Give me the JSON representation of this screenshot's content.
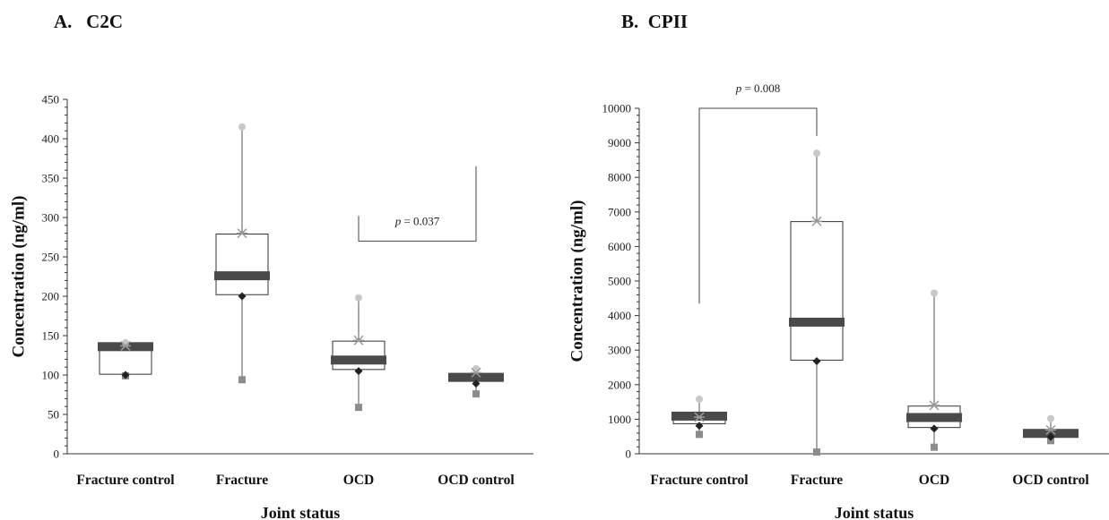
{
  "charts": [
    {
      "title": "A.   C2C",
      "type": "boxplot",
      "ylabel": "Concentration (ng/ml)",
      "xlabel": "Joint status",
      "ylim": [
        0,
        450
      ],
      "yticks": [
        "0",
        "50",
        "100",
        "150",
        "200",
        "250",
        "300",
        "350",
        "400",
        "450"
      ],
      "categories": [
        "Fracture control",
        "Fracture",
        "OCD",
        "OCD control"
      ],
      "boxes": [
        {
          "q1": 101,
          "q3": 140,
          "median": 136,
          "mean": 137,
          "max": 141,
          "min": 99,
          "diamond": 100
        },
        {
          "q1": 202,
          "q3": 279,
          "median": 226,
          "mean": 280,
          "max": 415,
          "min": 94,
          "diamond": 200
        },
        {
          "q1": 107,
          "q3": 143,
          "median": 119,
          "mean": 144,
          "max": 198,
          "min": 59,
          "diamond": 105
        },
        {
          "q1": 92,
          "q3": 102,
          "median": 97,
          "mean": 103,
          "max": 108,
          "min": 76,
          "diamond": 89
        }
      ],
      "annotation": {
        "from": 2,
        "to": 3,
        "italic": "p",
        "text": " = 0.037"
      }
    },
    {
      "title": "B.  CPII",
      "type": "boxplot",
      "ylabel": "Concentration (ng/ml)",
      "xlabel": "Joint status",
      "ylim": [
        0,
        10000
      ],
      "yticks": [
        "0",
        "1000",
        "2000",
        "3000",
        "4000",
        "5000",
        "6000",
        "7000",
        "8000",
        "9000",
        "10000"
      ],
      "categories": [
        "Fracture control",
        "Fracture",
        "OCD",
        "OCD control"
      ],
      "boxes": [
        {
          "q1": 870,
          "q3": 1200,
          "median": 1090,
          "mean": 1060,
          "max": 1580,
          "min": 560,
          "diamond": 810
        },
        {
          "q1": 2710,
          "q3": 6720,
          "median": 3810,
          "mean": 6730,
          "max": 8700,
          "min": 50,
          "diamond": 2680
        },
        {
          "q1": 760,
          "q3": 1380,
          "median": 1050,
          "mean": 1400,
          "max": 4650,
          "min": 190,
          "diamond": 730
        },
        {
          "q1": 490,
          "q3": 700,
          "median": 590,
          "mean": 690,
          "max": 1020,
          "min": 380,
          "diamond": 490
        }
      ],
      "annotation": {
        "from": 0,
        "to": 1,
        "italic": "p",
        "text": " = 0.008"
      }
    }
  ],
  "chart_data": [
    {
      "type": "boxplot",
      "title": "A.   C2C",
      "xlabel": "Joint status",
      "ylabel": "Concentration (ng/ml)",
      "ylim": [
        0,
        450
      ],
      "categories": [
        "Fracture control",
        "Fracture",
        "OCD",
        "OCD control"
      ],
      "series": [
        {
          "name": "Q1",
          "values": [
            101,
            202,
            107,
            92
          ]
        },
        {
          "name": "Median",
          "values": [
            136,
            226,
            119,
            97
          ]
        },
        {
          "name": "Q3",
          "values": [
            140,
            279,
            143,
            102
          ]
        },
        {
          "name": "Max",
          "values": [
            141,
            415,
            198,
            108
          ]
        },
        {
          "name": "Min",
          "values": [
            99,
            94,
            59,
            76
          ]
        },
        {
          "name": "Mean",
          "values": [
            137,
            280,
            144,
            103
          ]
        }
      ],
      "annotations": [
        "p = 0.037"
      ]
    },
    {
      "type": "boxplot",
      "title": "B.  CPII",
      "xlabel": "Joint status",
      "ylabel": "Concentration (ng/ml)",
      "ylim": [
        0,
        10000
      ],
      "categories": [
        "Fracture control",
        "Fracture",
        "OCD",
        "OCD control"
      ],
      "series": [
        {
          "name": "Q1",
          "values": [
            870,
            2710,
            760,
            490
          ]
        },
        {
          "name": "Median",
          "values": [
            1090,
            3810,
            1050,
            590
          ]
        },
        {
          "name": "Q3",
          "values": [
            1200,
            6720,
            1380,
            700
          ]
        },
        {
          "name": "Max",
          "values": [
            1580,
            8700,
            4650,
            1020
          ]
        },
        {
          "name": "Min",
          "values": [
            560,
            50,
            190,
            380
          ]
        },
        {
          "name": "Mean",
          "values": [
            1060,
            6730,
            1400,
            690
          ]
        }
      ],
      "annotations": [
        "p = 0.008"
      ]
    }
  ]
}
